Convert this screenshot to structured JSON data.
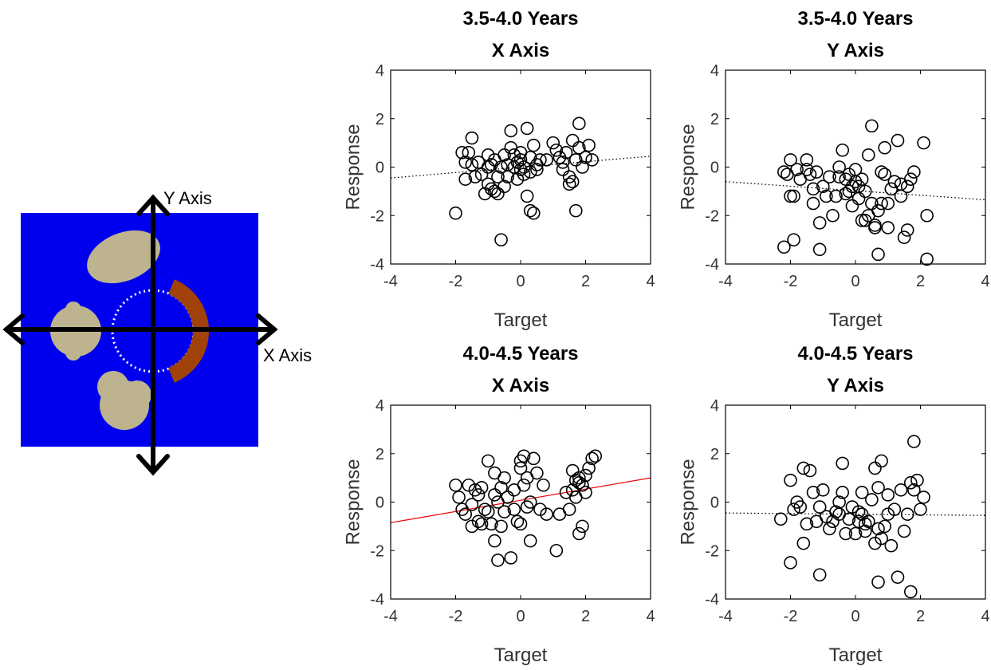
{
  "diagram": {
    "y_axis_label": "Y Axis",
    "x_axis_label": "X Axis",
    "colors": {
      "background": "#0000ee",
      "target": "#a0420a",
      "object": "#bdb48f",
      "arrow": "#000000",
      "circle": "#ffffff"
    }
  },
  "chart_data": [
    {
      "type": "scatter",
      "title": [
        "3.5-4.0 Years",
        "X Axis"
      ],
      "xlabel": "Target",
      "ylabel": "Response",
      "xlim": [
        -4,
        4
      ],
      "ylim": [
        -4,
        4
      ],
      "xticks": [
        "-4",
        "-2",
        "0",
        "2",
        "4"
      ],
      "yticks": [
        "-4",
        "-2",
        "0",
        "2",
        "4"
      ],
      "fit": {
        "style": "dotted",
        "color": "#000000",
        "y_at_xmin": -0.45,
        "y_at_xmax": 0.45
      },
      "points": [
        [
          -2.0,
          -1.9
        ],
        [
          -1.8,
          0.6
        ],
        [
          -1.7,
          0.2
        ],
        [
          -1.7,
          -0.5
        ],
        [
          -1.6,
          0.6
        ],
        [
          -1.5,
          1.2
        ],
        [
          -1.5,
          0.1
        ],
        [
          -1.4,
          -0.4
        ],
        [
          -1.3,
          0.2
        ],
        [
          -1.2,
          -0.3
        ],
        [
          -1.1,
          -1.1
        ],
        [
          -1.0,
          0.5
        ],
        [
          -1.0,
          -0.7
        ],
        [
          -0.9,
          0.1
        ],
        [
          -0.9,
          -0.9
        ],
        [
          -0.8,
          0.3
        ],
        [
          -0.8,
          -1.0
        ],
        [
          -0.7,
          -0.4
        ],
        [
          -0.7,
          -1.1
        ],
        [
          -0.6,
          0.0
        ],
        [
          -0.6,
          -3.0
        ],
        [
          -0.5,
          -0.8
        ],
        [
          -0.4,
          0.1
        ],
        [
          -0.4,
          -0.4
        ],
        [
          -0.3,
          1.5
        ],
        [
          -0.3,
          0.8
        ],
        [
          -0.2,
          0.5
        ],
        [
          -0.2,
          0.0
        ],
        [
          -0.1,
          -0.5
        ],
        [
          -0.1,
          0.2
        ],
        [
          0.0,
          -0.1
        ],
        [
          0.0,
          0.6
        ],
        [
          0.1,
          0.0
        ],
        [
          0.1,
          -0.3
        ],
        [
          0.2,
          1.6
        ],
        [
          0.2,
          -1.2
        ],
        [
          0.3,
          0.4
        ],
        [
          0.3,
          -0.2
        ],
        [
          0.3,
          -1.8
        ],
        [
          0.4,
          -1.9
        ],
        [
          0.4,
          0.9
        ],
        [
          0.5,
          -0.1
        ],
        [
          0.5,
          0.1
        ],
        [
          0.6,
          0.3
        ],
        [
          1.0,
          1.0
        ],
        [
          1.1,
          0.7
        ],
        [
          1.3,
          0.2
        ],
        [
          1.3,
          -0.1
        ],
        [
          1.4,
          0.6
        ],
        [
          1.5,
          -0.4
        ],
        [
          1.5,
          -0.7
        ],
        [
          1.6,
          -0.6
        ],
        [
          1.7,
          0.3
        ],
        [
          1.7,
          -1.8
        ],
        [
          1.8,
          1.8
        ],
        [
          1.8,
          0.8
        ],
        [
          1.9,
          0.0
        ],
        [
          2.0,
          0.4
        ],
        [
          2.1,
          0.9
        ],
        [
          2.2,
          0.3
        ],
        [
          1.2,
          0.4
        ],
        [
          0.8,
          0.3
        ],
        [
          -0.5,
          0.5
        ],
        [
          0.0,
          0.3
        ],
        [
          -1.0,
          0.0
        ],
        [
          1.6,
          1.1
        ]
      ]
    },
    {
      "type": "scatter",
      "title": [
        "3.5-4.0 Years",
        "Y Axis"
      ],
      "xlabel": "Target",
      "ylabel": "Response",
      "xlim": [
        -4,
        4
      ],
      "ylim": [
        -4,
        4
      ],
      "xticks": [
        "-4",
        "-2",
        "0",
        "2",
        "4"
      ],
      "yticks": [
        "-4",
        "-2",
        "0",
        "2",
        "4"
      ],
      "fit": {
        "style": "dotted",
        "color": "#000000",
        "y_at_xmin": -0.6,
        "y_at_xmax": -1.35
      },
      "points": [
        [
          -2.2,
          -3.3
        ],
        [
          -2.2,
          -0.2
        ],
        [
          -2.1,
          -0.3
        ],
        [
          -2.0,
          0.3
        ],
        [
          -2.0,
          -1.2
        ],
        [
          -1.9,
          -3.0
        ],
        [
          -1.9,
          -1.2
        ],
        [
          -1.8,
          -0.1
        ],
        [
          -1.7,
          -0.5
        ],
        [
          -1.5,
          0.3
        ],
        [
          -1.5,
          -0.1
        ],
        [
          -1.4,
          -0.3
        ],
        [
          -1.3,
          -0.9
        ],
        [
          -1.3,
          -1.5
        ],
        [
          -1.2,
          -0.2
        ],
        [
          -1.1,
          -3.4
        ],
        [
          -1.1,
          -2.3
        ],
        [
          -1.0,
          -0.8
        ],
        [
          -0.9,
          -1.2
        ],
        [
          -0.8,
          -0.4
        ],
        [
          -0.7,
          -2.0
        ],
        [
          -0.6,
          -1.2
        ],
        [
          -0.5,
          0.0
        ],
        [
          -0.5,
          -0.4
        ],
        [
          -0.4,
          0.7
        ],
        [
          -0.3,
          -0.5
        ],
        [
          -0.3,
          -1.1
        ],
        [
          -0.2,
          -0.3
        ],
        [
          -0.1,
          -0.8
        ],
        [
          -0.1,
          -1.6
        ],
        [
          0.0,
          -0.1
        ],
        [
          0.0,
          -0.6
        ],
        [
          0.1,
          -0.8
        ],
        [
          0.1,
          -1.3
        ],
        [
          0.2,
          -0.5
        ],
        [
          0.3,
          -2.2
        ],
        [
          0.3,
          -1.0
        ],
        [
          0.4,
          -2.0
        ],
        [
          0.4,
          0.5
        ],
        [
          0.5,
          1.7
        ],
        [
          0.5,
          -1.5
        ],
        [
          0.6,
          -2.4
        ],
        [
          0.6,
          -2.5
        ],
        [
          0.7,
          -3.6
        ],
        [
          0.7,
          -1.8
        ],
        [
          0.8,
          -0.2
        ],
        [
          0.8,
          -1.5
        ],
        [
          0.9,
          -0.3
        ],
        [
          0.9,
          0.8
        ],
        [
          1.0,
          -1.5
        ],
        [
          1.0,
          -2.5
        ],
        [
          1.1,
          -0.9
        ],
        [
          1.2,
          -0.6
        ],
        [
          1.3,
          1.1
        ],
        [
          1.4,
          -0.7
        ],
        [
          1.4,
          -1.2
        ],
        [
          1.5,
          -2.9
        ],
        [
          1.6,
          -0.8
        ],
        [
          1.6,
          -2.6
        ],
        [
          1.7,
          -0.5
        ],
        [
          1.8,
          -0.2
        ],
        [
          2.1,
          1.0
        ],
        [
          2.2,
          -2.0
        ],
        [
          2.2,
          -3.8
        ],
        [
          0.2,
          -2.2
        ],
        [
          -0.2,
          -1.0
        ]
      ]
    },
    {
      "type": "scatter",
      "title": [
        "4.0-4.5 Years",
        "X Axis"
      ],
      "xlabel": "Target",
      "ylabel": "Response",
      "xlim": [
        -4,
        4
      ],
      "ylim": [
        -4,
        4
      ],
      "xticks": [
        "-4",
        "-2",
        "0",
        "2",
        "4"
      ],
      "yticks": [
        "-4",
        "-2",
        "0",
        "2",
        "4"
      ],
      "fit": {
        "style": "solid",
        "color": "#ee0000",
        "y_at_xmin": -0.85,
        "y_at_xmax": 1.0
      },
      "points": [
        [
          -2.0,
          0.7
        ],
        [
          -1.9,
          0.2
        ],
        [
          -1.8,
          -0.3
        ],
        [
          -1.7,
          -0.5
        ],
        [
          -1.6,
          0.7
        ],
        [
          -1.5,
          -0.1
        ],
        [
          -1.5,
          -1.0
        ],
        [
          -1.4,
          0.5
        ],
        [
          -1.3,
          -0.8
        ],
        [
          -1.2,
          0.6
        ],
        [
          -1.2,
          -0.9
        ],
        [
          -1.1,
          -0.3
        ],
        [
          -1.0,
          1.7
        ],
        [
          -1.0,
          -0.4
        ],
        [
          -0.9,
          -0.9
        ],
        [
          -0.8,
          1.2
        ],
        [
          -0.8,
          0.3
        ],
        [
          -0.8,
          -1.6
        ],
        [
          -0.7,
          -2.4
        ],
        [
          -0.7,
          0.0
        ],
        [
          -0.6,
          -1.0
        ],
        [
          -0.5,
          1.0
        ],
        [
          -0.5,
          -0.4
        ],
        [
          -0.4,
          0.2
        ],
        [
          -0.3,
          -2.3
        ],
        [
          -0.2,
          -0.3
        ],
        [
          -0.2,
          0.5
        ],
        [
          -0.1,
          -0.8
        ],
        [
          0.0,
          1.7
        ],
        [
          0.0,
          1.4
        ],
        [
          0.0,
          -0.9
        ],
        [
          0.1,
          1.9
        ],
        [
          0.1,
          0.7
        ],
        [
          0.2,
          1.0
        ],
        [
          0.2,
          -0.2
        ],
        [
          0.3,
          0.0
        ],
        [
          0.3,
          -1.6
        ],
        [
          0.4,
          1.8
        ],
        [
          0.5,
          1.2
        ],
        [
          0.6,
          -0.3
        ],
        [
          0.7,
          0.7
        ],
        [
          1.1,
          -2.0
        ],
        [
          1.2,
          -0.5
        ],
        [
          1.4,
          0.4
        ],
        [
          1.5,
          -0.3
        ],
        [
          1.6,
          1.3
        ],
        [
          1.6,
          0.5
        ],
        [
          1.7,
          0.2
        ],
        [
          1.8,
          1.0
        ],
        [
          1.8,
          -1.3
        ],
        [
          1.9,
          -1.0
        ],
        [
          1.9,
          0.7
        ],
        [
          2.0,
          1.1
        ],
        [
          2.0,
          0.4
        ],
        [
          2.1,
          1.4
        ],
        [
          2.2,
          1.8
        ],
        [
          2.3,
          1.9
        ],
        [
          1.8,
          0.8
        ],
        [
          1.7,
          0.9
        ],
        [
          -0.6,
          0.6
        ],
        [
          0.8,
          -0.5
        ],
        [
          -1.3,
          0.3
        ]
      ]
    },
    {
      "type": "scatter",
      "title": [
        "4.0-4.5 Years",
        "Y Axis"
      ],
      "xlabel": "Target",
      "ylabel": "Response",
      "xlim": [
        -4,
        4
      ],
      "ylim": [
        -4,
        4
      ],
      "xticks": [
        "-4",
        "-2",
        "0",
        "2",
        "4"
      ],
      "yticks": [
        "-4",
        "-2",
        "0",
        "2",
        "4"
      ],
      "fit": {
        "style": "dotted",
        "color": "#000000",
        "y_at_xmin": -0.45,
        "y_at_xmax": -0.55
      },
      "points": [
        [
          -2.3,
          -0.7
        ],
        [
          -2.0,
          0.9
        ],
        [
          -2.0,
          -2.5
        ],
        [
          -1.9,
          -0.3
        ],
        [
          -1.8,
          0.0
        ],
        [
          -1.7,
          -0.2
        ],
        [
          -1.6,
          1.4
        ],
        [
          -1.6,
          -1.7
        ],
        [
          -1.5,
          -0.9
        ],
        [
          -1.4,
          1.3
        ],
        [
          -1.3,
          0.4
        ],
        [
          -1.2,
          -0.8
        ],
        [
          -1.1,
          -3.0
        ],
        [
          -1.1,
          -0.2
        ],
        [
          -1.0,
          0.5
        ],
        [
          -0.9,
          -0.6
        ],
        [
          -0.8,
          -1.1
        ],
        [
          -0.7,
          -0.8
        ],
        [
          -0.6,
          -0.4
        ],
        [
          -0.5,
          0.0
        ],
        [
          -0.4,
          0.4
        ],
        [
          -0.4,
          1.6
        ],
        [
          -0.3,
          -1.3
        ],
        [
          -0.2,
          -0.7
        ],
        [
          -0.1,
          -0.2
        ],
        [
          0.0,
          -1.3
        ],
        [
          0.1,
          -0.8
        ],
        [
          0.1,
          -0.4
        ],
        [
          0.2,
          0.4
        ],
        [
          0.2,
          -0.5
        ],
        [
          0.3,
          -1.2
        ],
        [
          0.4,
          -0.8
        ],
        [
          0.5,
          0.1
        ],
        [
          0.6,
          1.4
        ],
        [
          0.6,
          -1.7
        ],
        [
          0.7,
          0.6
        ],
        [
          0.7,
          -1.1
        ],
        [
          0.7,
          -3.3
        ],
        [
          0.8,
          1.7
        ],
        [
          0.8,
          -1.5
        ],
        [
          0.9,
          -1.0
        ],
        [
          1.0,
          0.3
        ],
        [
          1.0,
          -0.5
        ],
        [
          1.1,
          -1.8
        ],
        [
          1.2,
          -0.3
        ],
        [
          1.3,
          -3.1
        ],
        [
          1.4,
          0.5
        ],
        [
          1.5,
          -1.2
        ],
        [
          1.6,
          -0.5
        ],
        [
          1.7,
          0.8
        ],
        [
          1.7,
          -3.7
        ],
        [
          1.8,
          2.5
        ],
        [
          1.8,
          0.5
        ],
        [
          1.9,
          0.9
        ],
        [
          2.0,
          -0.3
        ],
        [
          2.1,
          0.2
        ],
        [
          0.3,
          -0.9
        ],
        [
          -0.5,
          -0.5
        ]
      ]
    }
  ]
}
